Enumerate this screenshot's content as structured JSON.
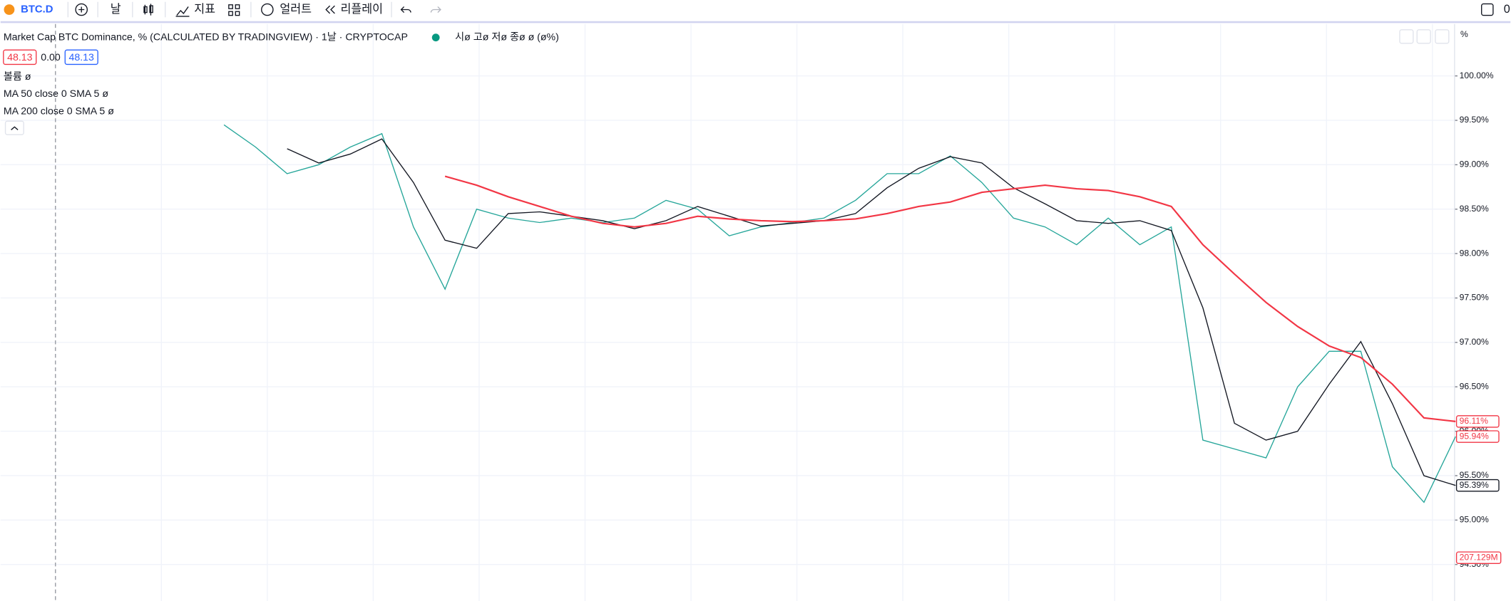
{
  "toolbar": {
    "symbol": "BTC.D",
    "interval": "날",
    "indicators": "지표",
    "alerts": "얼러트",
    "replay": "리플레이",
    "right_text": "0"
  },
  "legend": {
    "title": "Market Cap BTC Dominance, % (CALCULATED BY TRADINGVIEW) · 1날 · CRYPTOCAP",
    "ohlc": "시ø 고ø 저ø 종ø ø (ø%)",
    "bid": "48.13",
    "spread": "0.00",
    "ask": "48.13",
    "indicators": [
      "볼륨  ø",
      "MA 50 close 0 SMA 5   ø",
      "MA 200 close 0 SMA 5   ø"
    ]
  },
  "chart_data": {
    "type": "line",
    "axis_unit": "%",
    "categories": [
      null,
      null,
      null,
      null,
      null,
      null,
      null,
      null,
      null,
      null,
      null,
      null,
      null,
      null,
      null,
      null,
      null,
      null,
      null,
      null,
      null,
      null,
      null,
      null,
      null,
      null,
      null,
      null,
      null,
      null,
      null,
      null,
      null,
      null,
      null,
      null,
      null,
      null,
      null,
      null
    ],
    "series": [
      {
        "name": "BTC.D",
        "color": "#26a69a",
        "values": [
          99.45,
          99.2,
          98.9,
          99.0,
          99.2,
          99.35,
          98.3,
          97.6,
          98.5,
          98.4,
          98.35,
          98.4,
          98.35,
          98.4,
          98.6,
          98.5,
          98.2,
          98.3,
          98.35,
          98.4,
          98.6,
          98.9,
          98.9,
          99.1,
          98.8,
          98.4,
          98.3,
          98.1,
          98.4,
          98.1,
          98.3,
          95.9,
          95.8,
          95.7,
          96.5,
          96.9,
          96.9,
          95.6,
          95.2,
          95.94
        ]
      },
      {
        "name": "MA 50",
        "color": "#131722",
        "values": [
          null,
          null,
          99.18,
          99.02,
          99.12,
          99.29,
          98.8,
          98.15,
          98.06,
          98.45,
          98.47,
          98.42,
          98.37,
          98.28,
          98.37,
          98.53,
          98.42,
          98.31,
          98.34,
          98.37,
          98.45,
          98.74,
          98.96,
          99.09,
          99.02,
          98.74,
          98.56,
          98.37,
          98.34,
          98.37,
          98.26,
          97.39,
          96.09,
          95.9,
          96.0,
          96.53,
          97.01,
          96.31,
          95.5,
          95.39
        ]
      },
      {
        "name": "MA 200",
        "color": "#f23645",
        "values": [
          null,
          null,
          null,
          null,
          null,
          null,
          null,
          98.87,
          98.77,
          98.64,
          98.53,
          98.42,
          98.34,
          98.3,
          98.34,
          98.42,
          98.39,
          98.37,
          98.36,
          98.37,
          98.39,
          98.45,
          98.53,
          98.58,
          98.69,
          98.73,
          98.77,
          98.73,
          98.71,
          98.64,
          98.53,
          98.1,
          97.77,
          97.45,
          97.18,
          96.96,
          96.83,
          96.53,
          96.15,
          96.11
        ]
      }
    ],
    "ylim": [
      94.089,
      100.584
    ],
    "yticks": [
      {
        "value": 94.5,
        "label": "94.50%"
      },
      {
        "value": 95,
        "label": "95.00%"
      },
      {
        "value": 95.5,
        "label": "95.50%"
      },
      {
        "value": 96,
        "label": "96.00%"
      },
      {
        "value": 96.5,
        "label": "96.50%"
      },
      {
        "value": 97,
        "label": "97.00%"
      },
      {
        "value": 97.5,
        "label": "97.50%"
      },
      {
        "value": 98,
        "label": "98.00%"
      },
      {
        "value": 98.5,
        "label": "98.50%"
      },
      {
        "value": 99,
        "label": "99.00%"
      },
      {
        "value": 99.5,
        "label": "99.50%"
      },
      {
        "value": 100,
        "label": "100.00%"
      }
    ],
    "grid": true,
    "price_labels": [
      {
        "value": 96.11,
        "label": "96.11%",
        "color": "#f23645"
      },
      {
        "value": 95.94,
        "label": "95.94%",
        "color": "#f23645"
      },
      {
        "value": 95.39,
        "label": "95.39%",
        "color": "#131722"
      }
    ],
    "volume_label": "207.129M"
  }
}
